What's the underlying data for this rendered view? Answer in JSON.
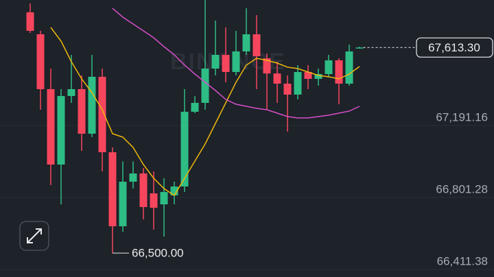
{
  "chart_data": {
    "type": "candlestick",
    "watermark": "BINANCE",
    "ylim": [
      66370.6,
      67870.6
    ],
    "yticks": [
      {
        "value": 67191.16,
        "label": "67,191.16"
      },
      {
        "value": 66801.28,
        "label": "66,801.28"
      },
      {
        "value": 66411.38,
        "label": "66,411.38"
      }
    ],
    "grid": true,
    "up_color": "#2ebd85",
    "down_color": "#f6465d",
    "open": [
      67803.8,
      67684.9,
      67387.9,
      66979.5,
      67350.8,
      67387.9,
      67146.6,
      67454.7,
      67046.3,
      66645.3,
      66886.7,
      66931.2,
      66823.5,
      66764.1,
      66812.4,
      66860.7,
      67265.4,
      67313.7,
      67499.3,
      67573.6,
      67480.7,
      67592.1,
      67684.9,
      67555.0,
      67472.5,
      67417.6,
      67358.2,
      67480.7,
      67443.6,
      67469.6,
      67543.9,
      67417.6,
      67611.0
    ],
    "high": [
      67852.0,
      67703.5,
      67499.3,
      67387.9,
      67573.6,
      67462.2,
      67573.6,
      67499.3,
      67072.3,
      66996.6,
      66996.6,
      66960.9,
      66942.4,
      66905.2,
      66886.7,
      67387.9,
      67350.8,
      67870.0,
      67759.2,
      67722.1,
      67703.5,
      67826.0,
      67788.9,
      67581.0,
      67536.4,
      67462.2,
      67517.9,
      67517.9,
      67499.3,
      67573.6,
      67555.0,
      67629.3,
      67618.0
    ],
    "low": [
      67692.4,
      67276.5,
      66868.1,
      66764.1,
      67313.7,
      67053.8,
      67128.0,
      66942.4,
      66500.0,
      66615.6,
      66849.5,
      66682.4,
      66626.8,
      66589.6,
      66764.1,
      66830.9,
      67258.0,
      67276.5,
      67462.2,
      67425.0,
      67462.2,
      67573.6,
      67387.9,
      67276.5,
      67313.7,
      67157.7,
      67332.2,
      67387.9,
      67406.5,
      67454.7,
      67306.2,
      67406.5,
      67608.0
    ],
    "close": [
      67703.5,
      67387.9,
      66979.5,
      67350.8,
      67387.9,
      67146.6,
      67454.7,
      67046.3,
      66645.3,
      66886.7,
      66931.2,
      66749.3,
      66745.5,
      66830.9,
      66860.7,
      67265.4,
      67313.7,
      67499.3,
      67573.6,
      67480.7,
      67592.1,
      67684.9,
      67566.1,
      67472.5,
      67417.6,
      67358.2,
      67480.7,
      67443.6,
      67469.6,
      67543.9,
      67417.6,
      67592.1,
      67613.3
    ],
    "series": [
      {
        "color": "#f0b90b",
        "values": [
          null,
          null,
          67722.1,
          67647.8,
          67536.4,
          67443.6,
          67369.4,
          67276.5,
          67146.6,
          67128.0,
          67072.3,
          66979.5,
          66905.2,
          66849.5,
          66812.4,
          66905.2,
          66998.0,
          67090.9,
          67202.3,
          67313.7,
          67425.0,
          67517.9,
          67555.0,
          67543.9,
          67529.0,
          67506.9,
          67499.3,
          67480.7,
          67462.2,
          67454.7,
          67443.6,
          67469.6,
          67510.4
        ]
      },
      {
        "color": "#d64fc9",
        "values": [
          null,
          null,
          null,
          null,
          null,
          null,
          null,
          null,
          67826.0,
          67777.8,
          67740.6,
          67703.5,
          67666.4,
          67618.1,
          67573.6,
          67517.9,
          67469.6,
          67425.0,
          67380.5,
          67332.2,
          67306.2,
          67295.1,
          67283.9,
          67276.5,
          67257.9,
          67239.4,
          67232.0,
          67232.0,
          67239.4,
          67246.8,
          67257.9,
          67269.1,
          67295.1
        ]
      }
    ],
    "last_price": {
      "value": 67613.3,
      "label": "67,613.30"
    },
    "annotations": [
      {
        "value": 66500.0,
        "label": "66,500.00"
      }
    ]
  }
}
